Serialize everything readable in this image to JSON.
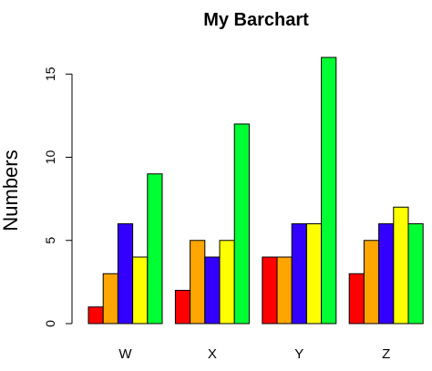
{
  "chart_data": {
    "type": "bar",
    "title": "My Barchart",
    "xlabel": "",
    "ylabel": "Numbers",
    "categories": [
      "W",
      "X",
      "Y",
      "Z"
    ],
    "ylim": [
      0,
      16
    ],
    "yticks": [
      "0",
      "5",
      "10",
      "15"
    ],
    "grid": false,
    "legend": "none",
    "bar_colors": [
      "#ff0000",
      "#ffa500",
      "#3300ff",
      "#ffff00",
      "#00ff33"
    ],
    "series": [
      {
        "values": [
          1,
          2,
          4,
          3
        ]
      },
      {
        "values": [
          3,
          5,
          4,
          5
        ]
      },
      {
        "values": [
          6,
          4,
          6,
          6
        ]
      },
      {
        "values": [
          4,
          5,
          6,
          7
        ]
      },
      {
        "values": [
          9,
          12,
          16,
          6
        ]
      }
    ]
  }
}
